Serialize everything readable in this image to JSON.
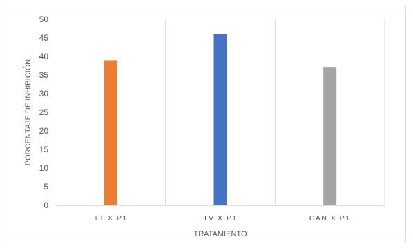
{
  "chart_data": {
    "type": "bar",
    "title": "",
    "xlabel": "TRATAMIENTO",
    "ylabel": "PORCENTAJE DE INHIBICIÓN",
    "ylim": [
      0,
      50
    ],
    "yticks": [
      0,
      5,
      10,
      15,
      20,
      25,
      30,
      35,
      40,
      45,
      50
    ],
    "grid": "vertical separators between categories",
    "legend": "none",
    "categories": [
      "TT X P1",
      "TV X P1",
      "CAN X P1"
    ],
    "series": [
      {
        "name": "",
        "color": "#ed7d31",
        "values": [
          39,
          null,
          null
        ]
      },
      {
        "name": "",
        "color": "#4472c4",
        "values": [
          null,
          46,
          null
        ]
      },
      {
        "name": "",
        "color": "#a5a5a5",
        "values": [
          null,
          null,
          37.2
        ]
      }
    ]
  }
}
